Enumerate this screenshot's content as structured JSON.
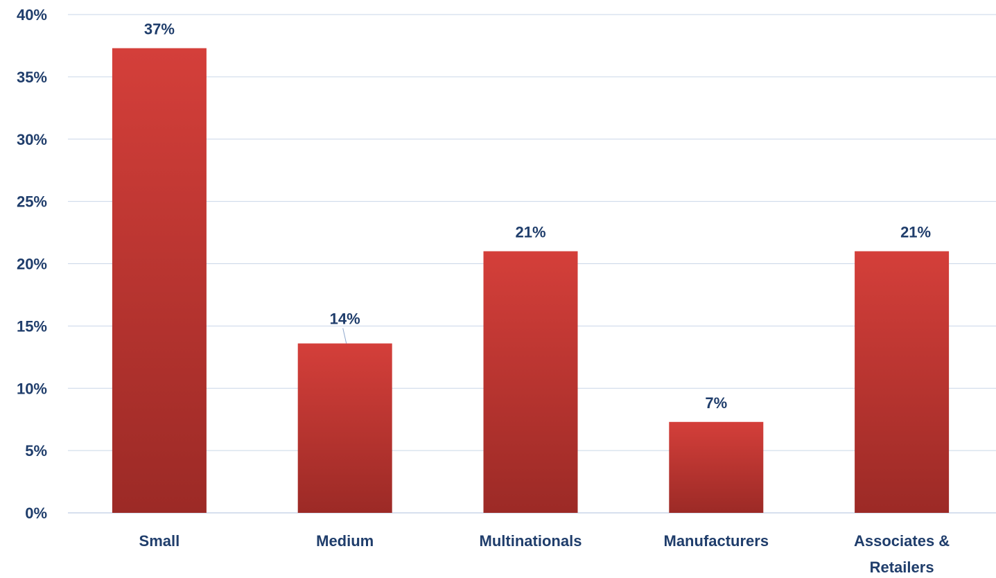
{
  "chart_data": {
    "type": "bar",
    "title": "",
    "xlabel": "",
    "ylabel": "",
    "categories": [
      [
        "Small"
      ],
      [
        "Medium"
      ],
      [
        "Multinationals"
      ],
      [
        "Manufacturers"
      ],
      [
        "Associates &",
        "Retailers"
      ]
    ],
    "values": [
      37.3,
      13.6,
      21,
      7.3,
      21
    ],
    "value_labels": [
      "37%",
      "14%",
      "21%",
      "7%",
      "21%"
    ],
    "ylim": [
      0,
      40
    ],
    "yticks": [
      0,
      5,
      10,
      15,
      20,
      25,
      30,
      35,
      40
    ],
    "ytick_labels": [
      "0%",
      "5%",
      "10%",
      "15%",
      "20%",
      "25%",
      "30%",
      "35%",
      "40%"
    ],
    "grid": true,
    "legend": "none"
  },
  "colors": {
    "bar_top": "#d43f3a",
    "bar_bottom": "#9c2a26",
    "text": "#1f3d6b",
    "grid": "#c9d6e8",
    "leader": "#8fa8cc"
  }
}
